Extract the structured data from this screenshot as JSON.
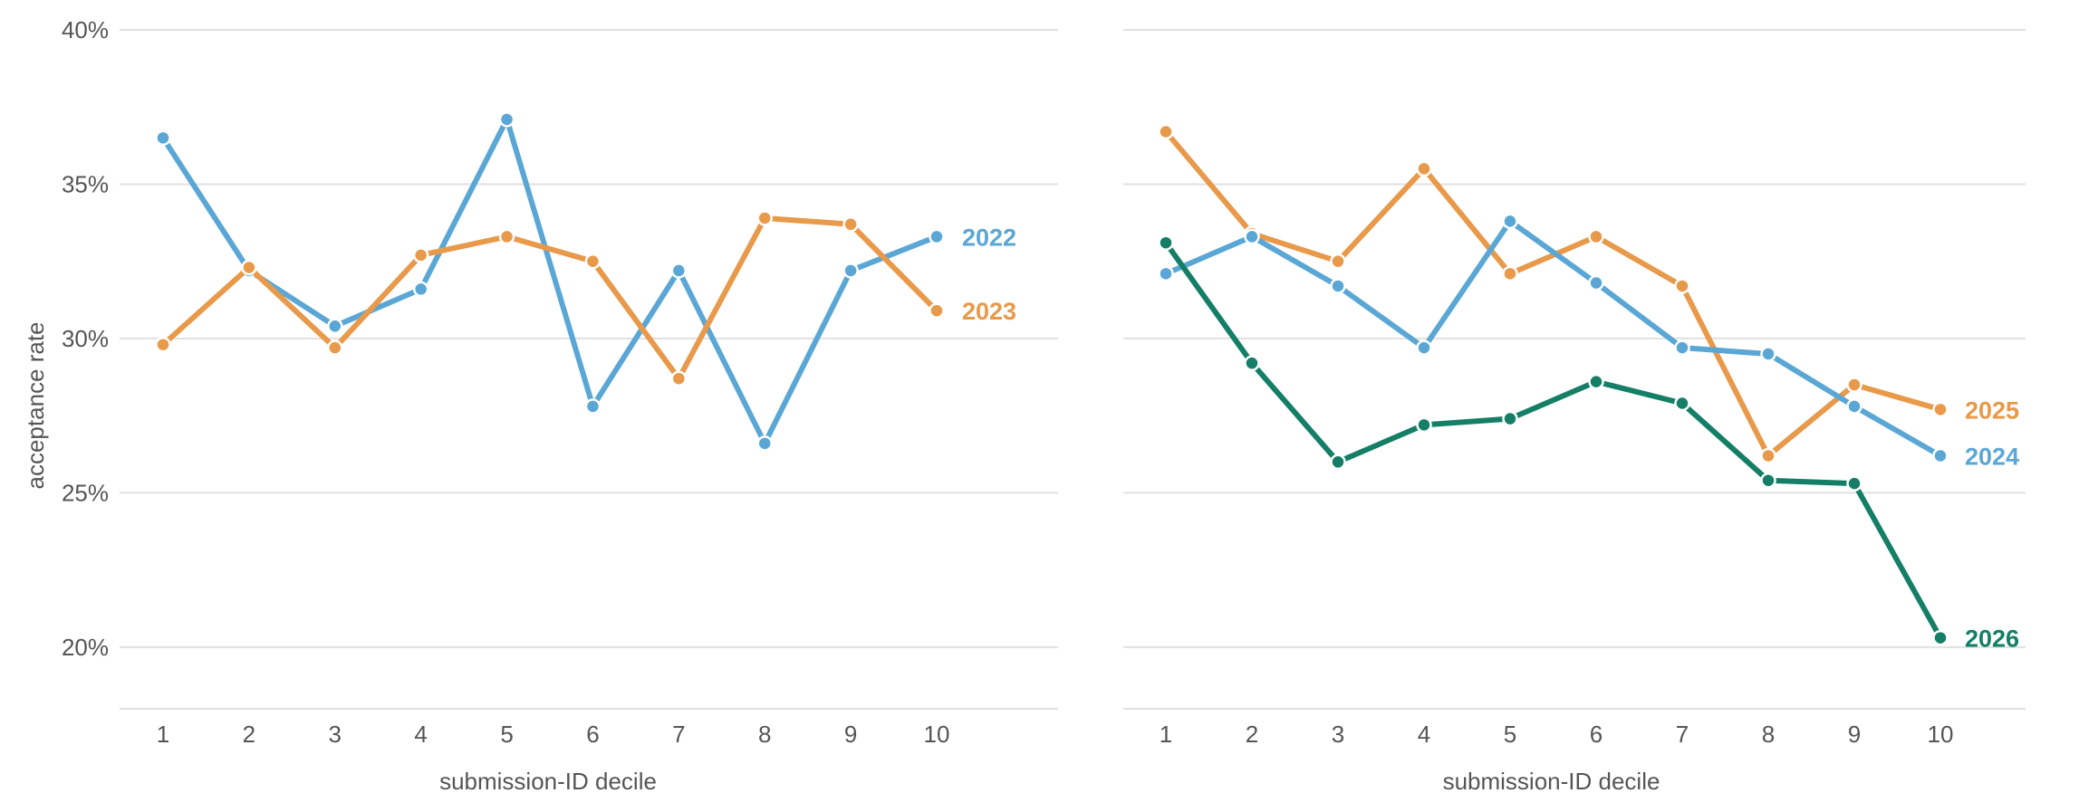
{
  "chart_data": [
    {
      "type": "line",
      "title": "",
      "xlabel": "submission-ID decile",
      "ylabel": "acceptance rate",
      "x": [
        1,
        2,
        3,
        4,
        5,
        6,
        7,
        8,
        9,
        10
      ],
      "ylim": [
        0.18,
        0.4
      ],
      "yticks": [
        0.2,
        0.25,
        0.3,
        0.35,
        0.4
      ],
      "ytick_labels": [
        "20%",
        "25%",
        "30%",
        "35%",
        "40%"
      ],
      "grid": true,
      "legend": "direct labels at line ends",
      "series": [
        {
          "name": "2022",
          "color": "#5aa7d6",
          "values": [
            0.365,
            0.322,
            0.304,
            0.316,
            0.371,
            0.278,
            0.322,
            0.266,
            0.322,
            0.333
          ]
        },
        {
          "name": "2023",
          "color": "#e8994a",
          "values": [
            0.298,
            0.323,
            0.297,
            0.327,
            0.333,
            0.325,
            0.287,
            0.339,
            0.337,
            0.309
          ]
        }
      ]
    },
    {
      "type": "line",
      "title": "",
      "xlabel": "submission-ID decile",
      "ylabel": "",
      "x": [
        1,
        2,
        3,
        4,
        5,
        6,
        7,
        8,
        9,
        10
      ],
      "ylim": [
        0.18,
        0.4
      ],
      "yticks": [
        0.2,
        0.25,
        0.3,
        0.35,
        0.4
      ],
      "ytick_labels": [
        "",
        "",
        "",
        "",
        ""
      ],
      "grid": true,
      "legend": "direct labels at line ends",
      "series": [
        {
          "name": "2025",
          "color": "#e8994a",
          "values": [
            0.367,
            0.334,
            0.325,
            0.355,
            0.321,
            0.333,
            0.317,
            0.262,
            0.285,
            0.277
          ]
        },
        {
          "name": "2024",
          "color": "#5aa7d6",
          "values": [
            0.321,
            0.333,
            0.317,
            0.297,
            0.338,
            0.318,
            0.297,
            0.295,
            0.278,
            0.262
          ]
        },
        {
          "name": "2026",
          "color": "#147f66",
          "values": [
            0.331,
            0.292,
            0.26,
            0.272,
            0.274,
            0.286,
            0.279,
            0.254,
            0.253,
            0.203
          ]
        }
      ]
    }
  ]
}
